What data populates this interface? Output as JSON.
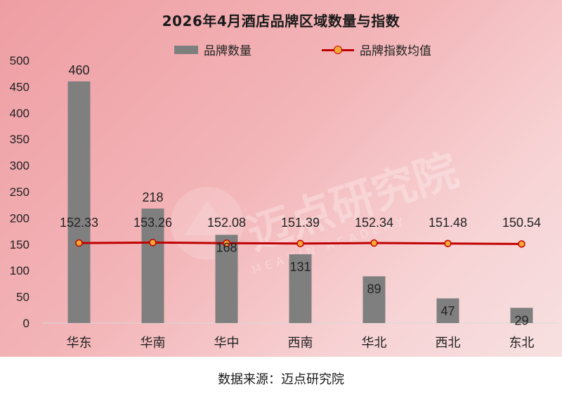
{
  "chart_data": {
    "type": "bar",
    "title": "2026年4月酒店品牌区域数量与指数",
    "categories": [
      "华东",
      "华南",
      "华中",
      "西南",
      "华北",
      "西北",
      "东北"
    ],
    "series": [
      {
        "name": "品牌数量",
        "type": "bar",
        "values": [
          460,
          218,
          168,
          131,
          89,
          47,
          29
        ],
        "color": "#7f7f7f"
      },
      {
        "name": "品牌指数均值",
        "type": "line",
        "values": [
          152.33,
          153.26,
          152.08,
          151.39,
          152.34,
          151.48,
          150.54
        ],
        "color": "#c00000",
        "marker_color": "#f5a833"
      }
    ],
    "y_ticks": [
      0,
      50,
      100,
      150,
      200,
      250,
      300,
      350,
      400,
      450,
      500
    ],
    "ylim": [
      0,
      500
    ],
    "legend_position": "top",
    "grid": false
  },
  "watermark": {
    "text": "迈点研究院",
    "subtext": "MEADIN ACADEMY"
  },
  "source": "数据来源：迈点研究院"
}
